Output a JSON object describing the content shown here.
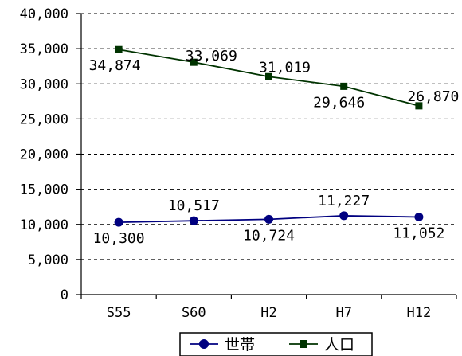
{
  "chart_data": {
    "type": "line",
    "categories": [
      "S55",
      "S60",
      "H2",
      "H7",
      "H12"
    ],
    "ylim": [
      0,
      40000
    ],
    "yticks": [
      "0",
      "5,000",
      "10,000",
      "15,000",
      "20,000",
      "25,000",
      "30,000",
      "35,000",
      "40,000"
    ],
    "grid": "horizontal-dashed",
    "legend_position": "bottom",
    "series": [
      {
        "name": "世帯",
        "values": [
          10300,
          10517,
          10724,
          11227,
          11052
        ],
        "labels": [
          "10,300",
          "10,517",
          "10,724",
          "11,227",
          "11,052"
        ],
        "color": "#000080",
        "marker": "circle"
      },
      {
        "name": "人口",
        "values": [
          34874,
          33069,
          31019,
          29646,
          26870
        ],
        "labels": [
          "34,874",
          "33,069",
          "31,019",
          "29,646",
          "26,870"
        ],
        "color": "#003300",
        "marker": "square"
      }
    ]
  }
}
